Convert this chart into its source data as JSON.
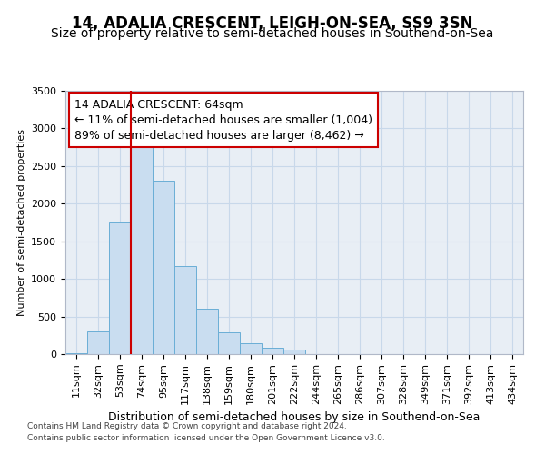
{
  "title": "14, ADALIA CRESCENT, LEIGH-ON-SEA, SS9 3SN",
  "subtitle": "Size of property relative to semi-detached houses in Southend-on-Sea",
  "xlabel": "Distribution of semi-detached houses by size in Southend-on-Sea",
  "ylabel": "Number of semi-detached properties",
  "footer1": "Contains HM Land Registry data © Crown copyright and database right 2024.",
  "footer2": "Contains public sector information licensed under the Open Government Licence v3.0.",
  "annotation_title": "14 ADALIA CRESCENT: 64sqm",
  "annotation_line1": "← 11% of semi-detached houses are smaller (1,004)",
  "annotation_line2": "89% of semi-detached houses are larger (8,462) →",
  "bar_labels": [
    "11sqm",
    "32sqm",
    "53sqm",
    "74sqm",
    "95sqm",
    "117sqm",
    "138sqm",
    "159sqm",
    "180sqm",
    "201sqm",
    "222sqm",
    "244sqm",
    "265sqm",
    "286sqm",
    "307sqm",
    "328sqm",
    "349sqm",
    "371sqm",
    "392sqm",
    "413sqm",
    "434sqm"
  ],
  "bar_values": [
    10,
    300,
    1750,
    2900,
    2300,
    1175,
    600,
    290,
    150,
    80,
    55,
    0,
    0,
    0,
    0,
    0,
    0,
    0,
    0,
    0,
    0
  ],
  "bar_color": "#c9ddf0",
  "bar_edge_color": "#6aaed6",
  "vline_color": "#cc0000",
  "vline_pos": 2.5,
  "ylim": [
    0,
    3500
  ],
  "yticks": [
    0,
    500,
    1000,
    1500,
    2000,
    2500,
    3000,
    3500
  ],
  "annotation_box_edge_color": "#cc0000",
  "annotation_fontsize": 9,
  "title_fontsize": 12,
  "subtitle_fontsize": 10,
  "xlabel_fontsize": 9,
  "ylabel_fontsize": 8,
  "tick_fontsize": 8,
  "grid_color": "#c8d8ea",
  "background_color": "#e8eef5"
}
